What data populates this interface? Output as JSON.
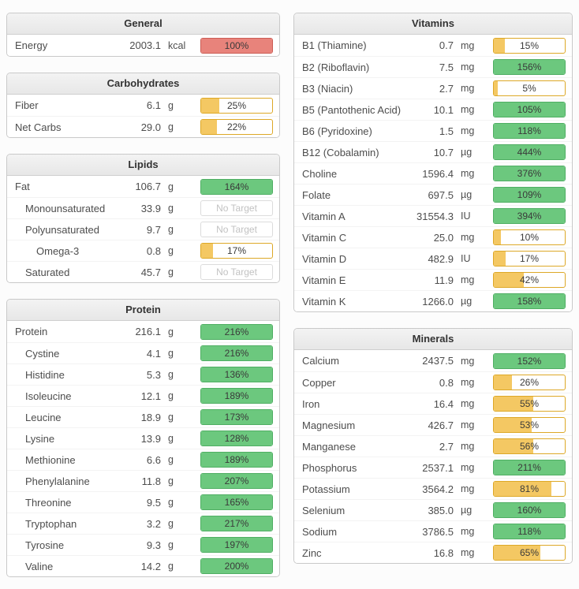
{
  "colors": {
    "green_fill": "#6cc87e",
    "green_border": "#4fae63",
    "yellow_fill": "#f4c863",
    "yellow_border": "#dda827",
    "red_fill": "#e8837b",
    "red_border": "#cb5d55",
    "panel_header_bg": "#ededed",
    "panel_border": "#c9c9c9"
  },
  "columns": {
    "left": [
      {
        "title": "General",
        "rows": [
          {
            "name": "Energy",
            "value": "2003.1",
            "unit": "kcal",
            "percent": 100,
            "label": "100%",
            "color": "red",
            "indent": 0
          }
        ]
      },
      {
        "title": "Carbohydrates",
        "rows": [
          {
            "name": "Fiber",
            "value": "6.1",
            "unit": "g",
            "percent": 25,
            "label": "25%",
            "color": "yellow",
            "indent": 0
          },
          {
            "name": "Net Carbs",
            "value": "29.0",
            "unit": "g",
            "percent": 22,
            "label": "22%",
            "color": "yellow",
            "indent": 0
          }
        ]
      },
      {
        "title": "Lipids",
        "rows": [
          {
            "name": "Fat",
            "value": "106.7",
            "unit": "g",
            "percent": 164,
            "label": "164%",
            "color": "green",
            "indent": 0
          },
          {
            "name": "Monounsaturated",
            "value": "33.9",
            "unit": "g",
            "percent": 0,
            "label": "No Target",
            "color": "none",
            "indent": 1
          },
          {
            "name": "Polyunsaturated",
            "value": "9.7",
            "unit": "g",
            "percent": 0,
            "label": "No Target",
            "color": "none",
            "indent": 1
          },
          {
            "name": "Omega-3",
            "value": "0.8",
            "unit": "g",
            "percent": 17,
            "label": "17%",
            "color": "yellow",
            "indent": 2
          },
          {
            "name": "Saturated",
            "value": "45.7",
            "unit": "g",
            "percent": 0,
            "label": "No Target",
            "color": "none",
            "indent": 1
          }
        ]
      },
      {
        "title": "Protein",
        "rows": [
          {
            "name": "Protein",
            "value": "216.1",
            "unit": "g",
            "percent": 216,
            "label": "216%",
            "color": "green",
            "indent": 0
          },
          {
            "name": "Cystine",
            "value": "4.1",
            "unit": "g",
            "percent": 216,
            "label": "216%",
            "color": "green",
            "indent": 1
          },
          {
            "name": "Histidine",
            "value": "5.3",
            "unit": "g",
            "percent": 136,
            "label": "136%",
            "color": "green",
            "indent": 1
          },
          {
            "name": "Isoleucine",
            "value": "12.1",
            "unit": "g",
            "percent": 189,
            "label": "189%",
            "color": "green",
            "indent": 1
          },
          {
            "name": "Leucine",
            "value": "18.9",
            "unit": "g",
            "percent": 173,
            "label": "173%",
            "color": "green",
            "indent": 1
          },
          {
            "name": "Lysine",
            "value": "13.9",
            "unit": "g",
            "percent": 128,
            "label": "128%",
            "color": "green",
            "indent": 1
          },
          {
            "name": "Methionine",
            "value": "6.6",
            "unit": "g",
            "percent": 189,
            "label": "189%",
            "color": "green",
            "indent": 1
          },
          {
            "name": "Phenylalanine",
            "value": "11.8",
            "unit": "g",
            "percent": 207,
            "label": "207%",
            "color": "green",
            "indent": 1
          },
          {
            "name": "Threonine",
            "value": "9.5",
            "unit": "g",
            "percent": 165,
            "label": "165%",
            "color": "green",
            "indent": 1
          },
          {
            "name": "Tryptophan",
            "value": "3.2",
            "unit": "g",
            "percent": 217,
            "label": "217%",
            "color": "green",
            "indent": 1
          },
          {
            "name": "Tyrosine",
            "value": "9.3",
            "unit": "g",
            "percent": 197,
            "label": "197%",
            "color": "green",
            "indent": 1
          },
          {
            "name": "Valine",
            "value": "14.2",
            "unit": "g",
            "percent": 200,
            "label": "200%",
            "color": "green",
            "indent": 1
          }
        ]
      }
    ],
    "right": [
      {
        "title": "Vitamins",
        "rows": [
          {
            "name": "B1 (Thiamine)",
            "value": "0.7",
            "unit": "mg",
            "percent": 15,
            "label": "15%",
            "color": "yellow",
            "indent": 0
          },
          {
            "name": "B2 (Riboflavin)",
            "value": "7.5",
            "unit": "mg",
            "percent": 156,
            "label": "156%",
            "color": "green",
            "indent": 0
          },
          {
            "name": "B3 (Niacin)",
            "value": "2.7",
            "unit": "mg",
            "percent": 5,
            "label": "5%",
            "color": "yellow",
            "indent": 0
          },
          {
            "name": "B5 (Pantothenic Acid)",
            "value": "10.1",
            "unit": "mg",
            "percent": 105,
            "label": "105%",
            "color": "green",
            "indent": 0
          },
          {
            "name": "B6 (Pyridoxine)",
            "value": "1.5",
            "unit": "mg",
            "percent": 118,
            "label": "118%",
            "color": "green",
            "indent": 0
          },
          {
            "name": "B12 (Cobalamin)",
            "value": "10.7",
            "unit": "µg",
            "percent": 444,
            "label": "444%",
            "color": "green",
            "indent": 0
          },
          {
            "name": "Choline",
            "value": "1596.4",
            "unit": "mg",
            "percent": 376,
            "label": "376%",
            "color": "green",
            "indent": 0
          },
          {
            "name": "Folate",
            "value": "697.5",
            "unit": "µg",
            "percent": 109,
            "label": "109%",
            "color": "green",
            "indent": 0
          },
          {
            "name": "Vitamin A",
            "value": "31554.3",
            "unit": "IU",
            "percent": 394,
            "label": "394%",
            "color": "green",
            "indent": 0
          },
          {
            "name": "Vitamin C",
            "value": "25.0",
            "unit": "mg",
            "percent": 10,
            "label": "10%",
            "color": "yellow",
            "indent": 0
          },
          {
            "name": "Vitamin D",
            "value": "482.9",
            "unit": "IU",
            "percent": 17,
            "label": "17%",
            "color": "yellow",
            "indent": 0
          },
          {
            "name": "Vitamin E",
            "value": "11.9",
            "unit": "mg",
            "percent": 42,
            "label": "42%",
            "color": "yellow",
            "indent": 0
          },
          {
            "name": "Vitamin K",
            "value": "1266.0",
            "unit": "µg",
            "percent": 158,
            "label": "158%",
            "color": "green",
            "indent": 0
          }
        ]
      },
      {
        "title": "Minerals",
        "rows": [
          {
            "name": "Calcium",
            "value": "2437.5",
            "unit": "mg",
            "percent": 152,
            "label": "152%",
            "color": "green",
            "indent": 0
          },
          {
            "name": "Copper",
            "value": "0.8",
            "unit": "mg",
            "percent": 26,
            "label": "26%",
            "color": "yellow",
            "indent": 0
          },
          {
            "name": "Iron",
            "value": "16.4",
            "unit": "mg",
            "percent": 55,
            "label": "55%",
            "color": "yellow",
            "indent": 0
          },
          {
            "name": "Magnesium",
            "value": "426.7",
            "unit": "mg",
            "percent": 53,
            "label": "53%",
            "color": "yellow",
            "indent": 0
          },
          {
            "name": "Manganese",
            "value": "2.7",
            "unit": "mg",
            "percent": 56,
            "label": "56%",
            "color": "yellow",
            "indent": 0
          },
          {
            "name": "Phosphorus",
            "value": "2537.1",
            "unit": "mg",
            "percent": 211,
            "label": "211%",
            "color": "green",
            "indent": 0
          },
          {
            "name": "Potassium",
            "value": "3564.2",
            "unit": "mg",
            "percent": 81,
            "label": "81%",
            "color": "yellow",
            "indent": 0
          },
          {
            "name": "Selenium",
            "value": "385.0",
            "unit": "µg",
            "percent": 160,
            "label": "160%",
            "color": "green",
            "indent": 0
          },
          {
            "name": "Sodium",
            "value": "3786.5",
            "unit": "mg",
            "percent": 118,
            "label": "118%",
            "color": "green",
            "indent": 0
          },
          {
            "name": "Zinc",
            "value": "16.8",
            "unit": "mg",
            "percent": 65,
            "label": "65%",
            "color": "yellow",
            "indent": 0
          }
        ]
      }
    ]
  }
}
